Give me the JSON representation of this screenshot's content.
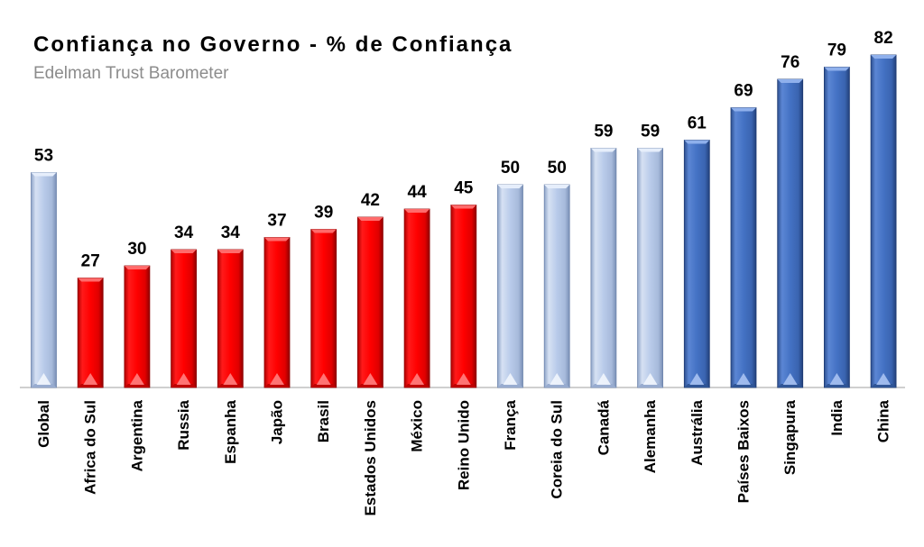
{
  "chart_data": {
    "type": "bar",
    "title": "Confiança no Governo - % de Confiança",
    "subtitle": "Edelman Trust Barometer",
    "xlabel": "",
    "ylabel": "",
    "ylim": [
      0,
      82
    ],
    "grid": false,
    "legend": "none",
    "categories": [
      "Global",
      "Africa do Sul",
      "Argentina",
      "Russia",
      "Espanha",
      "Japão",
      "Brasil",
      "Estados Unidos",
      "México",
      "Reino Unido",
      "França",
      "Coreia do Sul",
      "Canadá",
      "Alemanha",
      "Austrália",
      "Países Baixos",
      "Singapura",
      "India",
      "China"
    ],
    "values": [
      53,
      27,
      30,
      34,
      34,
      37,
      39,
      42,
      44,
      45,
      50,
      50,
      59,
      59,
      61,
      69,
      76,
      79,
      82
    ],
    "groups": [
      "global",
      "low",
      "low",
      "low",
      "low",
      "low",
      "low",
      "low",
      "low",
      "low",
      "mid",
      "mid",
      "mid",
      "mid",
      "high",
      "high",
      "high",
      "high",
      "high"
    ],
    "colors": {
      "global": "#b4c6e7",
      "low": "#ff0000",
      "mid": "#b4c6e7",
      "high": "#4472c4"
    }
  }
}
